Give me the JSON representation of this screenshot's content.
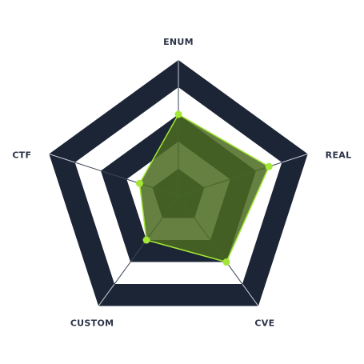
{
  "chart_data": {
    "type": "radar",
    "axes": [
      "ENUM",
      "REAL",
      "CVE",
      "CUSTOM",
      "CTF"
    ],
    "series": [
      {
        "values": [
          6,
          7,
          6,
          4,
          3
        ]
      }
    ],
    "rmax": 10,
    "ring_levels": [
      2,
      4,
      6,
      8,
      10
    ],
    "grid": true,
    "colors": {
      "band_dark": "#1c2536",
      "band_light": "#ffffff",
      "inner_spoke": "#3a4456",
      "outer_spoke": "#c8ccd4",
      "series_fill": "#4a6a20",
      "series_stroke": "#a3e635",
      "marker": "#a3e635",
      "label": "#2b3347"
    }
  }
}
